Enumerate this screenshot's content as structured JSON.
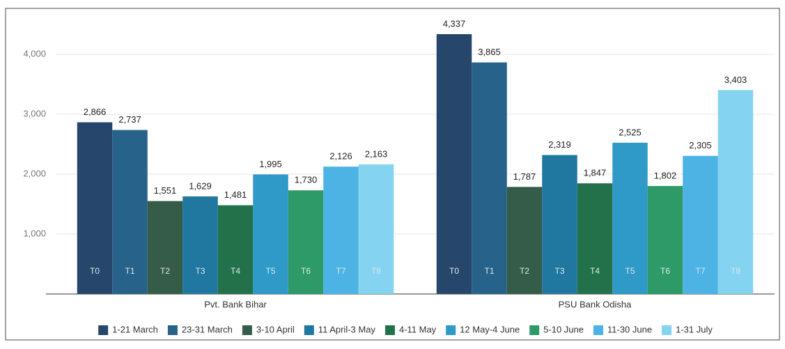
{
  "chart_data": {
    "type": "bar",
    "categories": [
      "Pvt. Bank Bihar",
      "PSU Bank Odisha"
    ],
    "series": [
      {
        "name": "1-21 March",
        "label": "T0",
        "color": "#26476b",
        "values": [
          2866,
          4337
        ],
        "value_labels": [
          "2,866",
          "4,337"
        ]
      },
      {
        "name": "23-31 March",
        "label": "T1",
        "color": "#27628a",
        "values": [
          2737,
          3865
        ],
        "value_labels": [
          "2,737",
          "3,865"
        ]
      },
      {
        "name": "3-10 April",
        "label": "T2",
        "color": "#355c48",
        "values": [
          1551,
          1787
        ],
        "value_labels": [
          "1,551",
          "1,787"
        ]
      },
      {
        "name": "11 April-3 May",
        "label": "T3",
        "color": "#2077a0",
        "values": [
          1629,
          2319
        ],
        "value_labels": [
          "1,629",
          "2,319"
        ]
      },
      {
        "name": "4-11 May",
        "label": "T4",
        "color": "#23714a",
        "values": [
          1481,
          1847
        ],
        "value_labels": [
          "1,481",
          "1,847"
        ]
      },
      {
        "name": "12 May-4 June",
        "label": "T5",
        "color": "#2f99c7",
        "values": [
          1995,
          2525
        ],
        "value_labels": [
          "1,995",
          "2,525"
        ]
      },
      {
        "name": "5-10 June",
        "label": "T6",
        "color": "#2e9a67",
        "values": [
          1730,
          1802
        ],
        "value_labels": [
          "1,730",
          "1,802"
        ]
      },
      {
        "name": "11-30 June",
        "label": "T7",
        "color": "#4db3e4",
        "values": [
          2126,
          2305
        ],
        "value_labels": [
          "2,126",
          "2,305"
        ]
      },
      {
        "name": "1-31 July",
        "label": "T8",
        "color": "#84d3f0",
        "values": [
          2163,
          3403
        ],
        "value_labels": [
          "2,163",
          "3,403"
        ]
      }
    ],
    "ylim": [
      0,
      4500
    ],
    "yticks": [
      {
        "value": 1000,
        "label": "1,000"
      },
      {
        "value": 2000,
        "label": "2,000"
      },
      {
        "value": 3000,
        "label": "3,000"
      },
      {
        "value": 4000,
        "label": "4,000"
      }
    ],
    "grid": true,
    "legend": "bottom"
  }
}
